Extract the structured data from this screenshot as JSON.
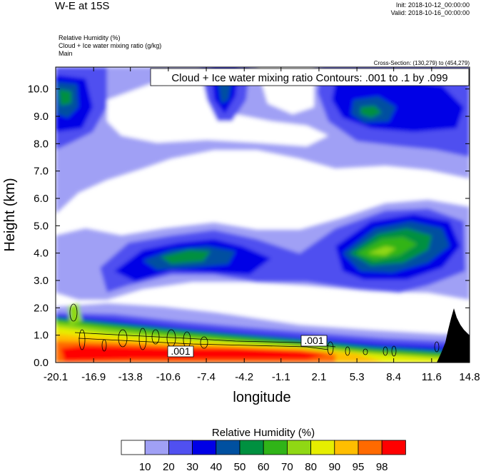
{
  "header": {
    "title": "W-E at 15S",
    "init": "Init: 2018-10-12_00:00:00",
    "valid": "Valid: 2018-10-16_00:00:00",
    "field_lines": [
      "Relative Humidity   (%)",
      "Cloud + Ice water mixing ratio   (g/kg)",
      "Main"
    ],
    "cross_section": "Cross-Section: (130,279) to (454,279)"
  },
  "chart_data": {
    "type": "heatmap",
    "xlabel": "longitude",
    "ylabel": "Height (km)",
    "x_ticks": [
      "-20.1",
      "-16.9",
      "-13.8",
      "-10.6",
      "-7.4",
      "-4.2",
      "-1.1",
      "2.1",
      "5.3",
      "8.4",
      "11.6",
      "14.8"
    ],
    "xlim": [
      -20.1,
      14.8
    ],
    "y_ticks": [
      "0.0",
      "1.0",
      "2.0",
      "3.0",
      "4.0",
      "5.0",
      "6.0",
      "7.0",
      "8.0",
      "9.0",
      "10.0"
    ],
    "ylim": [
      0.0,
      10.8
    ],
    "contour_title": "Cloud + Ice water mixing ratio Contours: .001 to .1 by .099",
    "contour_labels": [
      {
        "text": ".001",
        "lon": -1.0,
        "h": 0.85
      },
      {
        "text": ".001",
        "lon": -9.8,
        "h": 0.4
      }
    ],
    "colorbar": {
      "title": "Relative Humidity  (%)",
      "levels": [
        "10",
        "20",
        "30",
        "40",
        "50",
        "60",
        "70",
        "80",
        "90",
        "95",
        "98"
      ],
      "colors": [
        "#ffffff",
        "#a0a0f5",
        "#5050f0",
        "#0000e6",
        "#0050a0",
        "#009040",
        "#30b418",
        "#90d814",
        "#e6ee00",
        "#ffbe00",
        "#ff6a00",
        "#ff0000"
      ]
    },
    "terrain_color": "#000000"
  }
}
